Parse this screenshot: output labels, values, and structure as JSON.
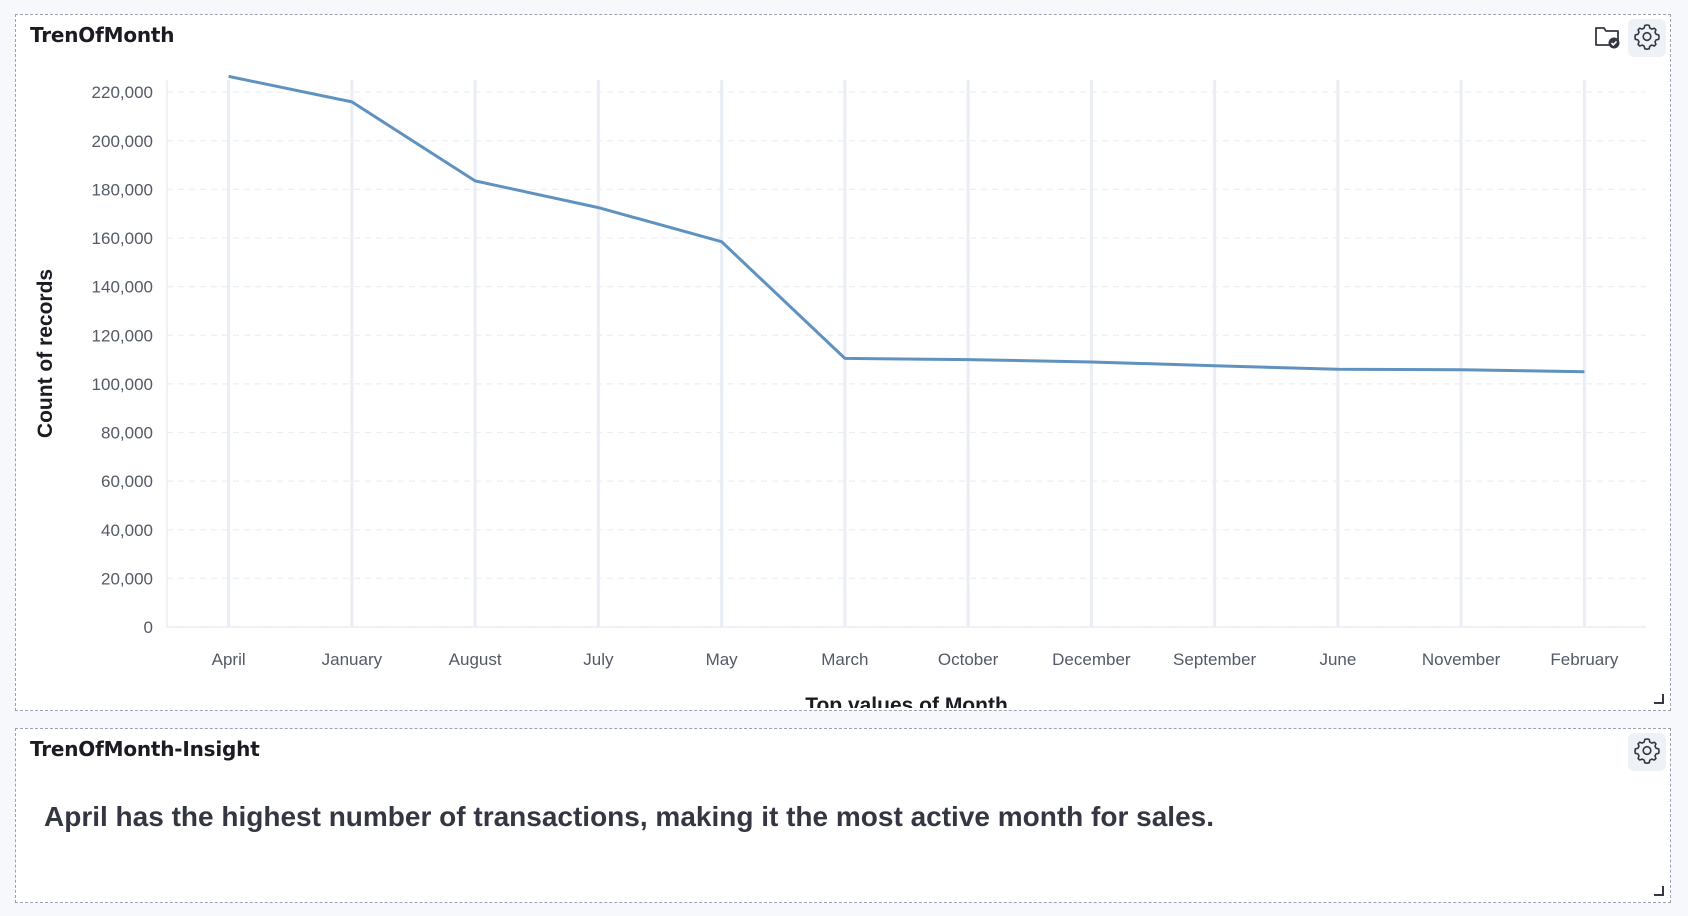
{
  "panels": {
    "chart": {
      "title": "TrenOfMonth"
    },
    "insight": {
      "title": "TrenOfMonth-Insight",
      "text": "April has the highest number of transactions, making it the most active month for sales."
    }
  },
  "icons": {
    "save": "folder-check-icon",
    "settings": "gear-icon"
  },
  "colors": {
    "line": "#6092c0",
    "grid": "#eaedf3"
  },
  "chart_data": {
    "type": "line",
    "xlabel": "Top values of Month",
    "ylabel": "Count of records",
    "categories": [
      "April",
      "January",
      "August",
      "July",
      "May",
      "March",
      "October",
      "December",
      "September",
      "June",
      "November",
      "February"
    ],
    "values": [
      226500,
      216000,
      183500,
      172500,
      158500,
      110500,
      110000,
      109000,
      107500,
      106000,
      105800,
      105000
    ],
    "ylim": [
      0,
      225000
    ],
    "yticks": [
      0,
      20000,
      40000,
      60000,
      80000,
      100000,
      120000,
      140000,
      160000,
      180000,
      200000,
      220000
    ],
    "ytick_labels": [
      "0",
      "20,000",
      "40,000",
      "60,000",
      "80,000",
      "100,000",
      "120,000",
      "140,000",
      "160,000",
      "180,000",
      "200,000",
      "220,000"
    ],
    "grid": true
  }
}
